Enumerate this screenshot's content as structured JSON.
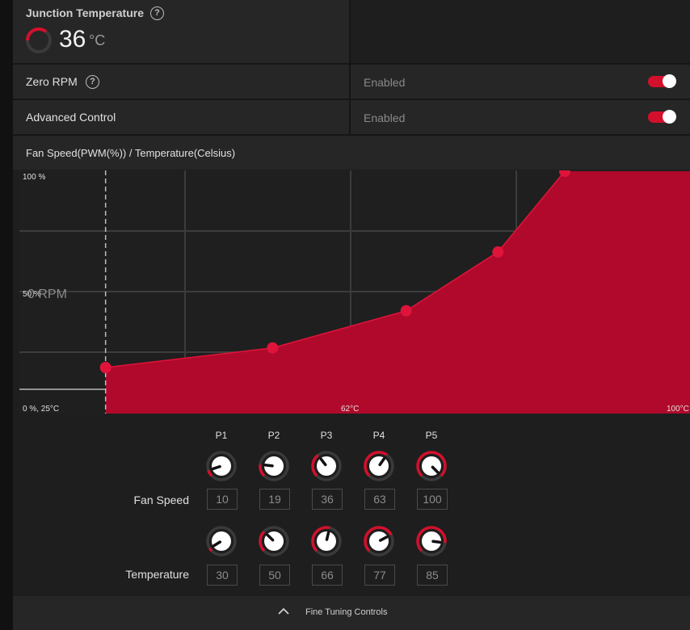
{
  "junction": {
    "title": "Junction Temperature",
    "help_glyph": "?",
    "value": "36",
    "unit": "°C",
    "gauge_fraction": 0.36
  },
  "zero_rpm": {
    "label": "Zero RPM",
    "help_glyph": "?",
    "status": "Enabled",
    "on": true
  },
  "advanced_control": {
    "label": "Advanced Control",
    "status": "Enabled",
    "on": true
  },
  "chart_title": "Fan Speed(PWM(%)) / Temperature(Celsius)",
  "chart_data": {
    "type": "area",
    "title": "Fan Speed(PWM(%)) / Temperature(Celsius)",
    "x_unit": "°C",
    "y_unit": "%",
    "xlim": [
      25,
      100
    ],
    "ylim": [
      0,
      100
    ],
    "points": [
      {
        "x": 30,
        "y": 10
      },
      {
        "x": 50,
        "y": 19
      },
      {
        "x": 66,
        "y": 36
      },
      {
        "x": 77,
        "y": 63
      },
      {
        "x": 85,
        "y": 100
      }
    ],
    "current_temperature": 30,
    "tick_labels": {
      "y_top": "100 %",
      "y_mid": "50 %",
      "origin": "0 %, 25°C",
      "x_mid": "62°C",
      "x_max": "100°C"
    },
    "overlay_text": "0 RPM",
    "accent_color": "#c80c2e"
  },
  "points": {
    "labels": [
      "P1",
      "P2",
      "P3",
      "P4",
      "P5"
    ],
    "fan_speed_label": "Fan Speed",
    "temperature_label": "Temperature",
    "fan_speed": [
      "10",
      "19",
      "36",
      "63",
      "100"
    ],
    "temperature": [
      "30",
      "50",
      "66",
      "77",
      "85"
    ],
    "fan_speed_fraction": [
      0.1,
      0.19,
      0.36,
      0.63,
      1.0
    ],
    "temperature_fraction": [
      0.05,
      0.33,
      0.55,
      0.73,
      0.86
    ]
  },
  "footer": {
    "label": "Fine Tuning Controls",
    "icon": "chevron-up-icon"
  },
  "colors": {
    "accent": "#d3102c",
    "fill": "#b0092b",
    "panel": "#1e1e1e",
    "row": "#262626"
  }
}
